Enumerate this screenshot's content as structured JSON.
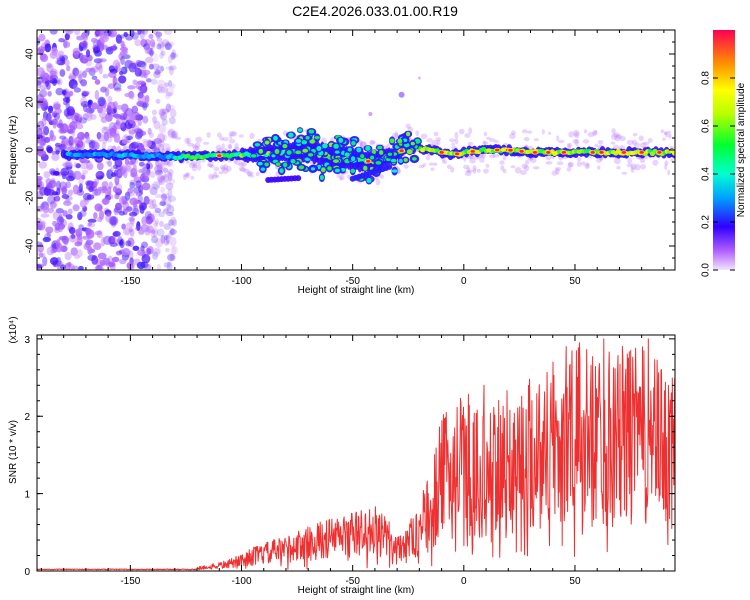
{
  "title": "C2E4.2026.033.01.00.R19",
  "chart_data": [
    {
      "type": "heatmap",
      "xlabel": "Height of straight line (km)",
      "ylabel": "Frequency (Hz)",
      "xlim": [
        -192,
        95
      ],
      "ylim": [
        -50,
        50
      ],
      "x_ticks": [
        -150,
        -100,
        -50,
        0,
        50
      ],
      "x_tick_labels": [
        "-150",
        "-100",
        "-50",
        "0",
        "50"
      ],
      "y_ticks": [
        -40,
        -20,
        0,
        20,
        40
      ],
      "y_tick_labels": [
        "-40",
        "-20",
        "0",
        "20",
        "40"
      ],
      "colorbar": {
        "label": "Normalized spectral amplitude",
        "range": [
          0,
          1
        ],
        "ticks": [
          0.0,
          0.2,
          0.4,
          0.6,
          0.8
        ],
        "tick_labels": [
          "0.0",
          "0.2",
          "0.4",
          "0.6",
          "0.8"
        ]
      },
      "description_values": {
        "main_band_center_hz": [
          [
            -175,
            -2
          ],
          [
            -150,
            -2
          ],
          [
            -130,
            -3
          ],
          [
            -100,
            -2
          ],
          [
            -90,
            -2
          ],
          [
            -80,
            -1
          ],
          [
            -70,
            0
          ],
          [
            -60,
            -3
          ],
          [
            -50,
            -4
          ],
          [
            -40,
            -5
          ],
          [
            -32,
            -2
          ],
          [
            -25,
            1
          ],
          [
            -15,
            0
          ],
          [
            -5,
            -2
          ],
          [
            0,
            -1
          ],
          [
            10,
            0
          ],
          [
            20,
            0
          ],
          [
            30,
            -1
          ],
          [
            40,
            -1
          ],
          [
            50,
            -1
          ],
          [
            60,
            -1
          ],
          [
            70,
            -1
          ],
          [
            80,
            -1
          ],
          [
            90,
            -1
          ]
        ]
      }
    },
    {
      "type": "line",
      "xlabel": "Height of straight line (km)",
      "ylabel": "SNR (10 * v/v)",
      "y_scale_label": "(x10⁴)",
      "xlim": [
        -192,
        95
      ],
      "ylim": [
        0,
        3.05
      ],
      "x_ticks": [
        -150,
        -100,
        -50,
        0,
        50
      ],
      "x_tick_labels": [
        "-150",
        "-100",
        "-50",
        "0",
        "50"
      ],
      "y_ticks": [
        0,
        1,
        2,
        3
      ],
      "y_tick_labels": [
        "0",
        "1",
        "2",
        "3"
      ],
      "color": "#ee3030",
      "envelope": {
        "x": [
          -192,
          -130,
          -115,
          -105,
          -95,
          -80,
          -60,
          -50,
          -40,
          -30,
          -20,
          -15,
          -10,
          0,
          10,
          20,
          30,
          40,
          50,
          60,
          70,
          80,
          95
        ],
        "y": [
          0.02,
          0.02,
          0.05,
          0.1,
          0.2,
          0.3,
          0.45,
          0.5,
          0.55,
          0.35,
          0.5,
          0.7,
          1.1,
          1.3,
          1.1,
          1.3,
          1.4,
          1.5,
          1.6,
          1.6,
          1.6,
          1.6,
          1.4
        ]
      },
      "peaks": [
        {
          "x": -16,
          "y": 1.0
        },
        {
          "x": 9,
          "y": 2.4
        },
        {
          "x": 40,
          "y": 2.7
        },
        {
          "x": 46,
          "y": 2.9
        },
        {
          "x": 52,
          "y": 2.95
        },
        {
          "x": 63,
          "y": 3.0
        },
        {
          "x": 75,
          "y": 2.85
        },
        {
          "x": 83,
          "y": 3.0
        },
        {
          "x": 92,
          "y": 2.4
        }
      ]
    }
  ]
}
